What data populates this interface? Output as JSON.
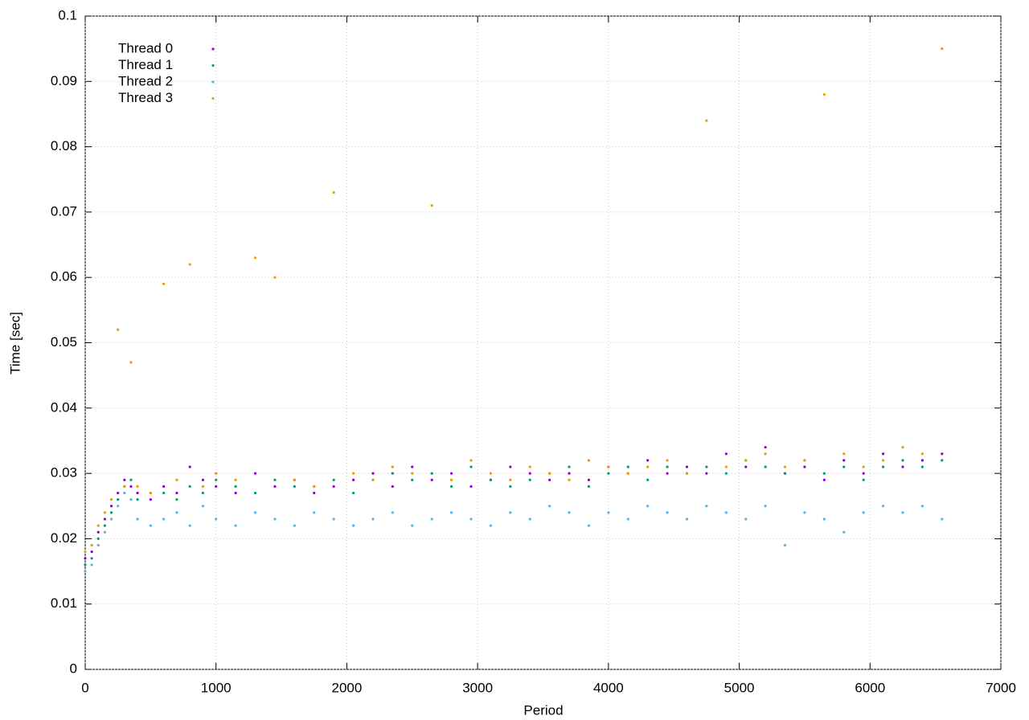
{
  "chart_data": {
    "type": "scatter",
    "xlabel": "Period",
    "ylabel": "Time [sec]",
    "x": [
      0,
      50,
      100,
      150,
      200,
      250,
      300,
      350,
      400,
      500,
      600,
      700,
      800,
      900,
      1000,
      1150,
      1300,
      1450,
      1600,
      1750,
      1900,
      2050,
      2200,
      2350,
      2500,
      2650,
      2800,
      2950,
      3100,
      3250,
      3400,
      3550,
      3700,
      3850,
      4000,
      4150,
      4300,
      4450,
      4600,
      4750,
      4900,
      5050,
      5200,
      5350,
      5500,
      5650,
      5800,
      5950,
      6100,
      6250,
      6400,
      6550
    ],
    "series": [
      {
        "name": "Thread 0",
        "color": "#9400d3",
        "values": [
          0.017,
          0.018,
          0.021,
          0.023,
          0.025,
          0.027,
          0.029,
          0.028,
          0.027,
          0.026,
          0.028,
          0.027,
          0.031,
          0.029,
          0.028,
          0.027,
          0.03,
          0.028,
          0.029,
          0.027,
          0.028,
          0.029,
          0.03,
          0.028,
          0.031,
          0.029,
          0.03,
          0.028,
          0.029,
          0.031,
          0.03,
          0.029,
          0.03,
          0.029,
          0.031,
          0.03,
          0.032,
          0.03,
          0.031,
          0.03,
          0.033,
          0.031,
          0.034,
          0.03,
          0.031,
          0.029,
          0.032,
          0.03,
          0.033,
          0.031,
          0.032,
          0.033
        ]
      },
      {
        "name": "Thread 1",
        "color": "#009e73",
        "values": [
          0.016,
          0.017,
          0.02,
          0.022,
          0.024,
          0.026,
          0.028,
          0.029,
          0.026,
          0.027,
          0.027,
          0.026,
          0.028,
          0.027,
          0.029,
          0.028,
          0.027,
          0.029,
          0.028,
          0.028,
          0.029,
          0.027,
          0.029,
          0.03,
          0.029,
          0.03,
          0.028,
          0.031,
          0.029,
          0.028,
          0.029,
          0.03,
          0.031,
          0.028,
          0.03,
          0.031,
          0.029,
          0.031,
          0.03,
          0.031,
          0.03,
          0.032,
          0.031,
          0.03,
          0.032,
          0.03,
          0.031,
          0.029,
          0.031,
          0.032,
          0.031,
          0.032
        ]
      },
      {
        "name": "Thread 2",
        "color": "#56b4e9",
        "values": [
          0.015,
          0.016,
          0.019,
          0.021,
          0.023,
          0.025,
          0.027,
          0.026,
          0.023,
          0.022,
          0.023,
          0.024,
          0.022,
          0.025,
          0.023,
          0.022,
          0.024,
          0.023,
          0.022,
          0.024,
          0.023,
          0.022,
          0.023,
          0.024,
          0.022,
          0.023,
          0.024,
          0.023,
          0.022,
          0.024,
          0.023,
          0.025,
          0.024,
          0.022,
          0.024,
          0.023,
          0.025,
          0.024,
          0.023,
          0.025,
          0.024,
          0.023,
          0.025,
          0.019,
          0.024,
          0.023,
          0.021,
          0.024,
          0.025,
          0.024,
          0.025,
          0.023
        ]
      },
      {
        "name": "Thread 3",
        "color": "#e69f00",
        "values": [
          0.018,
          0.019,
          0.022,
          0.024,
          0.026,
          0.052,
          0.028,
          0.047,
          0.028,
          0.027,
          0.059,
          0.029,
          0.062,
          0.028,
          0.03,
          0.029,
          0.063,
          0.06,
          0.029,
          0.028,
          0.073,
          0.03,
          0.029,
          0.031,
          0.03,
          0.071,
          0.029,
          0.032,
          0.03,
          0.029,
          0.031,
          0.03,
          0.029,
          0.032,
          0.031,
          0.03,
          0.031,
          0.032,
          0.03,
          0.084,
          0.031,
          0.032,
          0.033,
          0.031,
          0.032,
          0.088,
          0.033,
          0.031,
          0.032,
          0.034,
          0.033,
          0.095
        ]
      }
    ],
    "xlim": [
      0,
      7000
    ],
    "xticks": [
      0,
      1000,
      2000,
      3000,
      4000,
      5000,
      6000,
      7000
    ],
    "ylim": [
      0,
      0.1
    ],
    "yticks": [
      0,
      0.01,
      0.02,
      0.03,
      0.04,
      0.05,
      0.06,
      0.07,
      0.08,
      0.09,
      0.1
    ],
    "grid": true,
    "legend": "top-left"
  }
}
